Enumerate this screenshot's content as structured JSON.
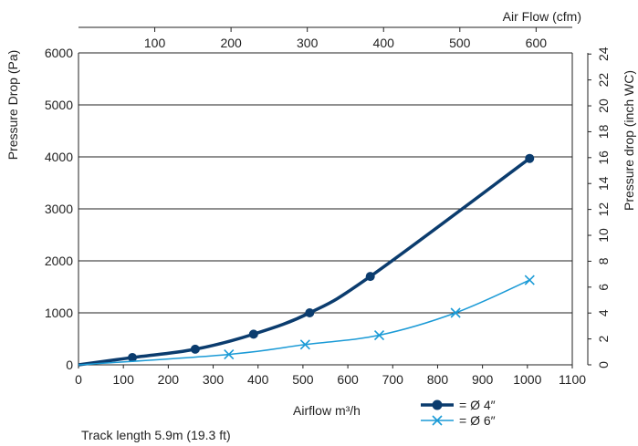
{
  "chart_data": {
    "type": "line",
    "xlabel": "Airflow m³/h",
    "ylabel": "Pressure Drop (Pa)",
    "x2label": "Air Flow (cfm)",
    "y2label": "Pressure drop (inch WC)",
    "footnote": "Track length 5.9m (19.3 ft)",
    "xlim": [
      0,
      1100
    ],
    "ylim": [
      0,
      6000
    ],
    "x_ticks": [
      "0",
      "100",
      "200",
      "300",
      "400",
      "500",
      "600",
      "700",
      "800",
      "900",
      "1000",
      "1100"
    ],
    "y_ticks": [
      "0",
      "1000",
      "2000",
      "3000",
      "4000",
      "5000",
      "6000"
    ],
    "x2_ticks": [
      "100",
      "200",
      "300",
      "400",
      "500",
      "600"
    ],
    "y2_ticks": [
      "0",
      "2",
      "4",
      "6",
      "8",
      "10",
      "12",
      "14",
      "16",
      "18",
      "20",
      "22",
      "24"
    ],
    "grid": "horizontal",
    "legend_position": "bottom-center",
    "series": [
      {
        "name": "= Ø 4″",
        "color": "#0b3c6e",
        "marker": "circle",
        "x": [
          0,
          120,
          260,
          390,
          515,
          650,
          1005
        ],
        "y": [
          0,
          140,
          300,
          590,
          1000,
          1700,
          3970
        ]
      },
      {
        "name": "= Ø 6″",
        "color": "#1a9ad6",
        "marker": "x",
        "x": [
          0,
          335,
          505,
          670,
          840,
          1005
        ],
        "y": [
          0,
          200,
          390,
          570,
          1000,
          1630
        ]
      }
    ]
  }
}
